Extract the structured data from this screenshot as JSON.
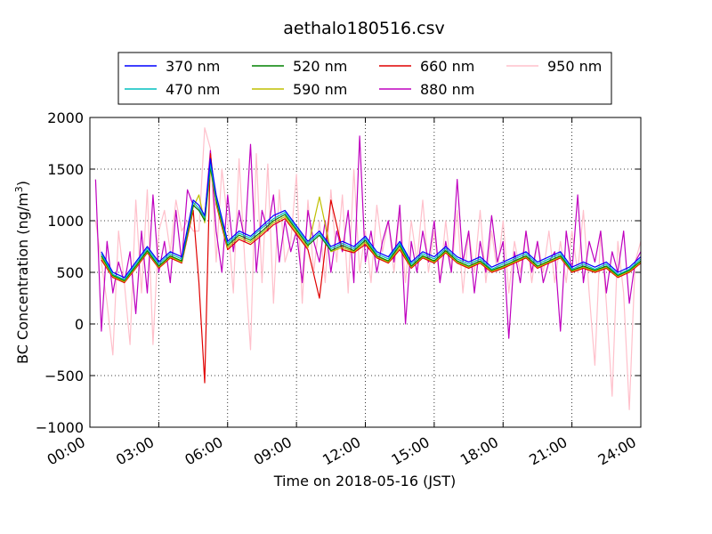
{
  "chart_data": {
    "type": "line",
    "title": "aethalo180516.csv",
    "xlabel": "Time on 2018-05-16 (JST)",
    "ylabel": "BC Concentration (ng/m³)",
    "ylabel_parts": {
      "main": "BC Concentration (ng/m",
      "sup": "3",
      "tail": ")"
    },
    "xlim": [
      0,
      24
    ],
    "ylim": [
      -1000,
      2000
    ],
    "x_ticks": [
      0,
      3,
      6,
      9,
      12,
      15,
      18,
      21,
      24
    ],
    "x_tick_labels": [
      "00:00",
      "03:00",
      "06:00",
      "09:00",
      "12:00",
      "15:00",
      "18:00",
      "21:00",
      "24:00"
    ],
    "y_ticks": [
      -1000,
      -500,
      0,
      500,
      1000,
      1500,
      2000
    ],
    "y_tick_labels": [
      "−1000",
      "−500",
      "0",
      "500",
      "1000",
      "1500",
      "2000"
    ],
    "grid": true,
    "legend_placement": "top, outside plot, 4 columns",
    "x_unit": "hours after 00:00",
    "series": [
      {
        "name": "370 nm",
        "color": "#0000ff",
        "x": [
          0.5,
          1,
          1.5,
          2,
          2.5,
          3,
          3.5,
          4,
          4.5,
          4.75,
          5,
          5.25,
          5.5,
          6,
          6.5,
          7,
          7.5,
          8,
          8.5,
          9,
          9.5,
          10,
          10.5,
          11,
          11.5,
          12,
          12.5,
          13,
          13.5,
          14,
          14.5,
          15,
          15.5,
          16,
          16.5,
          17,
          17.5,
          18,
          18.5,
          19,
          19.5,
          20,
          20.5,
          21,
          21.5,
          22,
          22.5,
          23,
          23.5,
          24
        ],
        "y": [
          700,
          500,
          450,
          600,
          750,
          600,
          700,
          650,
          1200,
          1150,
          1050,
          1600,
          1250,
          800,
          900,
          850,
          950,
          1050,
          1100,
          950,
          800,
          900,
          750,
          800,
          750,
          850,
          700,
          650,
          800,
          600,
          700,
          650,
          750,
          650,
          600,
          650,
          550,
          600,
          650,
          700,
          600,
          650,
          700,
          550,
          600,
          550,
          600,
          500,
          550,
          650
        ]
      },
      {
        "name": "470 nm",
        "color": "#00bfbf",
        "x": [
          0.5,
          1,
          1.5,
          2,
          2.5,
          3,
          3.5,
          4,
          4.5,
          4.75,
          5,
          5.25,
          5.5,
          6,
          6.5,
          7,
          7.5,
          8,
          8.5,
          9,
          9.5,
          10,
          10.5,
          11,
          11.5,
          12,
          12.5,
          13,
          13.5,
          14,
          14.5,
          15,
          15.5,
          16,
          16.5,
          17,
          17.5,
          18,
          18.5,
          19,
          19.5,
          20,
          20.5,
          21,
          21.5,
          22,
          22.5,
          23,
          23.5,
          24
        ],
        "y": [
          680,
          480,
          430,
          580,
          730,
          580,
          680,
          630,
          1180,
          1120,
          1030,
          1550,
          1230,
          780,
          880,
          830,
          930,
          1020,
          1080,
          930,
          780,
          880,
          730,
          780,
          730,
          830,
          680,
          630,
          780,
          580,
          680,
          630,
          730,
          630,
          580,
          630,
          530,
          580,
          630,
          680,
          580,
          630,
          680,
          530,
          580,
          530,
          580,
          480,
          530,
          630
        ]
      },
      {
        "name": "520 nm",
        "color": "#008000",
        "x": [
          0.5,
          1,
          1.5,
          2,
          2.5,
          3,
          3.5,
          4,
          4.5,
          4.75,
          5,
          5.25,
          5.5,
          6,
          6.5,
          7,
          7.5,
          8,
          8.5,
          9,
          9.5,
          10,
          10.5,
          11,
          11.5,
          12,
          12.5,
          13,
          13.5,
          14,
          14.5,
          15,
          15.5,
          16,
          16.5,
          17,
          17.5,
          18,
          18.5,
          19,
          19.5,
          20,
          20.5,
          21,
          21.5,
          22,
          22.5,
          23,
          23.5,
          24
        ],
        "y": [
          660,
          470,
          420,
          560,
          710,
          560,
          660,
          610,
          1150,
          1100,
          1000,
          1520,
          1200,
          760,
          860,
          810,
          900,
          1000,
          1060,
          910,
          760,
          860,
          710,
          760,
          710,
          810,
          660,
          610,
          760,
          560,
          660,
          610,
          710,
          610,
          560,
          610,
          520,
          560,
          610,
          660,
          560,
          610,
          660,
          520,
          560,
          520,
          560,
          470,
          520,
          610
        ]
      },
      {
        "name": "590 nm",
        "color": "#bfbf00",
        "x": [
          0.5,
          1,
          1.5,
          2,
          2.5,
          3,
          3.5,
          4,
          4.5,
          4.75,
          5,
          5.25,
          5.5,
          6,
          6.5,
          7,
          7.5,
          8,
          8.5,
          9,
          9.5,
          10,
          10.5,
          11,
          11.5,
          12,
          12.5,
          13,
          13.5,
          14,
          14.5,
          15,
          15.5,
          16,
          16.5,
          17,
          17.5,
          18,
          18.5,
          19,
          19.5,
          20,
          20.5,
          21,
          21.5,
          22,
          22.5,
          23,
          23.5,
          24
        ],
        "y": [
          640,
          460,
          410,
          550,
          700,
          550,
          650,
          600,
          1130,
          1250,
          980,
          1500,
          1180,
          740,
          840,
          790,
          880,
          980,
          1040,
          890,
          740,
          1230,
          700,
          740,
          700,
          790,
          650,
          600,
          740,
          550,
          650,
          600,
          700,
          600,
          550,
          600,
          510,
          550,
          600,
          650,
          550,
          600,
          650,
          510,
          550,
          510,
          550,
          460,
          510,
          600
        ]
      },
      {
        "name": "660 nm",
        "color": "#e00000",
        "x": [
          0.5,
          1,
          1.5,
          2,
          2.5,
          3,
          3.5,
          4,
          4.5,
          4.75,
          5,
          5.25,
          5.5,
          6,
          6.5,
          7,
          7.5,
          8,
          8.5,
          9,
          9.5,
          10,
          10.5,
          11,
          11.5,
          12,
          12.5,
          13,
          13.5,
          14,
          14.5,
          15,
          15.5,
          16,
          16.5,
          17,
          17.5,
          18,
          18.5,
          19,
          19.5,
          20,
          20.5,
          21,
          21.5,
          22,
          22.5,
          23,
          23.5,
          24
        ],
        "y": [
          620,
          450,
          400,
          540,
          690,
          540,
          640,
          590,
          1100,
          400,
          -570,
          1650,
          1160,
          720,
          820,
          770,
          860,
          960,
          1020,
          870,
          720,
          250,
          1200,
          720,
          690,
          770,
          640,
          590,
          720,
          540,
          640,
          590,
          690,
          590,
          540,
          590,
          500,
          540,
          590,
          640,
          540,
          590,
          640,
          500,
          540,
          500,
          540,
          450,
          500,
          590
        ]
      },
      {
        "name": "880 nm",
        "color": "#bf00bf",
        "x": [
          0.25,
          0.5,
          0.75,
          1,
          1.25,
          1.5,
          1.75,
          2,
          2.25,
          2.5,
          2.75,
          3,
          3.25,
          3.5,
          3.75,
          4,
          4.25,
          4.5,
          4.75,
          5,
          5.25,
          5.5,
          5.75,
          6,
          6.25,
          6.5,
          6.75,
          7,
          7.25,
          7.5,
          7.75,
          8,
          8.25,
          8.5,
          8.75,
          9,
          9.25,
          9.5,
          9.75,
          10,
          10.25,
          10.5,
          10.75,
          11,
          11.25,
          11.5,
          11.75,
          12,
          12.25,
          12.5,
          12.75,
          13,
          13.25,
          13.5,
          13.75,
          14,
          14.25,
          14.5,
          14.75,
          15,
          15.25,
          15.5,
          15.75,
          16,
          16.25,
          16.5,
          16.75,
          17,
          17.25,
          17.5,
          17.75,
          18,
          18.25,
          18.5,
          18.75,
          19,
          19.25,
          19.5,
          19.75,
          20,
          20.25,
          20.5,
          20.75,
          21,
          21.25,
          21.5,
          21.75,
          22,
          22.25,
          22.5,
          22.75,
          23,
          23.25,
          23.5,
          23.75,
          24
        ],
        "y": [
          1400,
          -70,
          800,
          300,
          600,
          400,
          700,
          100,
          900,
          300,
          1250,
          500,
          800,
          400,
          1100,
          600,
          1300,
          1150,
          1100,
          1030,
          1680,
          900,
          500,
          1250,
          700,
          1100,
          800,
          1740,
          500,
          1100,
          900,
          1250,
          600,
          1000,
          700,
          900,
          400,
          1100,
          800,
          600,
          1000,
          500,
          900,
          700,
          1100,
          400,
          1820,
          600,
          900,
          500,
          800,
          1000,
          600,
          1150,
          0,
          800,
          500,
          900,
          600,
          1000,
          400,
          800,
          500,
          1400,
          600,
          900,
          300,
          800,
          500,
          1050,
          600,
          800,
          -140,
          700,
          400,
          900,
          500,
          800,
          400,
          600,
          700,
          -70,
          900,
          500,
          1250,
          400,
          800,
          600,
          900,
          300,
          700,
          500,
          900,
          200,
          600,
          700
        ]
      },
      {
        "name": "950 nm",
        "color": "#ffc0cb",
        "x": [
          0.25,
          0.5,
          0.75,
          1,
          1.25,
          1.5,
          1.75,
          2,
          2.25,
          2.5,
          2.75,
          3,
          3.25,
          3.5,
          3.75,
          4,
          4.25,
          4.5,
          4.75,
          5,
          5.25,
          5.5,
          5.75,
          6,
          6.25,
          6.5,
          6.75,
          7,
          7.25,
          7.5,
          7.75,
          8,
          8.25,
          8.5,
          8.75,
          9,
          9.25,
          9.5,
          9.75,
          10,
          10.25,
          10.5,
          10.75,
          11,
          11.25,
          11.5,
          11.75,
          12,
          12.25,
          12.5,
          12.75,
          13,
          13.25,
          13.5,
          13.75,
          14,
          14.25,
          14.5,
          14.75,
          15,
          15.25,
          15.5,
          15.75,
          16,
          16.25,
          16.5,
          16.75,
          17,
          17.25,
          17.5,
          17.75,
          18,
          18.25,
          18.5,
          18.75,
          19,
          19.25,
          19.5,
          19.75,
          20,
          20.25,
          20.5,
          20.75,
          21,
          21.25,
          21.5,
          21.75,
          22,
          22.25,
          22.5,
          22.75,
          23,
          23.25,
          23.5,
          23.75,
          24
        ],
        "y": [
          1000,
          600,
          200,
          -300,
          900,
          400,
          -200,
          1200,
          300,
          1300,
          -200,
          900,
          1100,
          700,
          1200,
          900,
          1000,
          900,
          900,
          1900,
          1700,
          600,
          1500,
          1000,
          300,
          1600,
          600,
          -250,
          1650,
          400,
          1550,
          200,
          1300,
          600,
          800,
          1450,
          200,
          1200,
          500,
          1000,
          400,
          1300,
          600,
          1250,
          300,
          1500,
          500,
          900,
          400,
          1150,
          700,
          1000,
          500,
          1100,
          400,
          1000,
          600,
          1200,
          500,
          900,
          400,
          1000,
          500,
          1100,
          300,
          900,
          500,
          1100,
          400,
          900,
          500,
          1000,
          300,
          800,
          500,
          900,
          400,
          800,
          500,
          900,
          400,
          800,
          400,
          900,
          500,
          1100,
          300,
          -400,
          900,
          200,
          -700,
          800,
          300,
          -830,
          600,
          800
        ]
      }
    ]
  }
}
